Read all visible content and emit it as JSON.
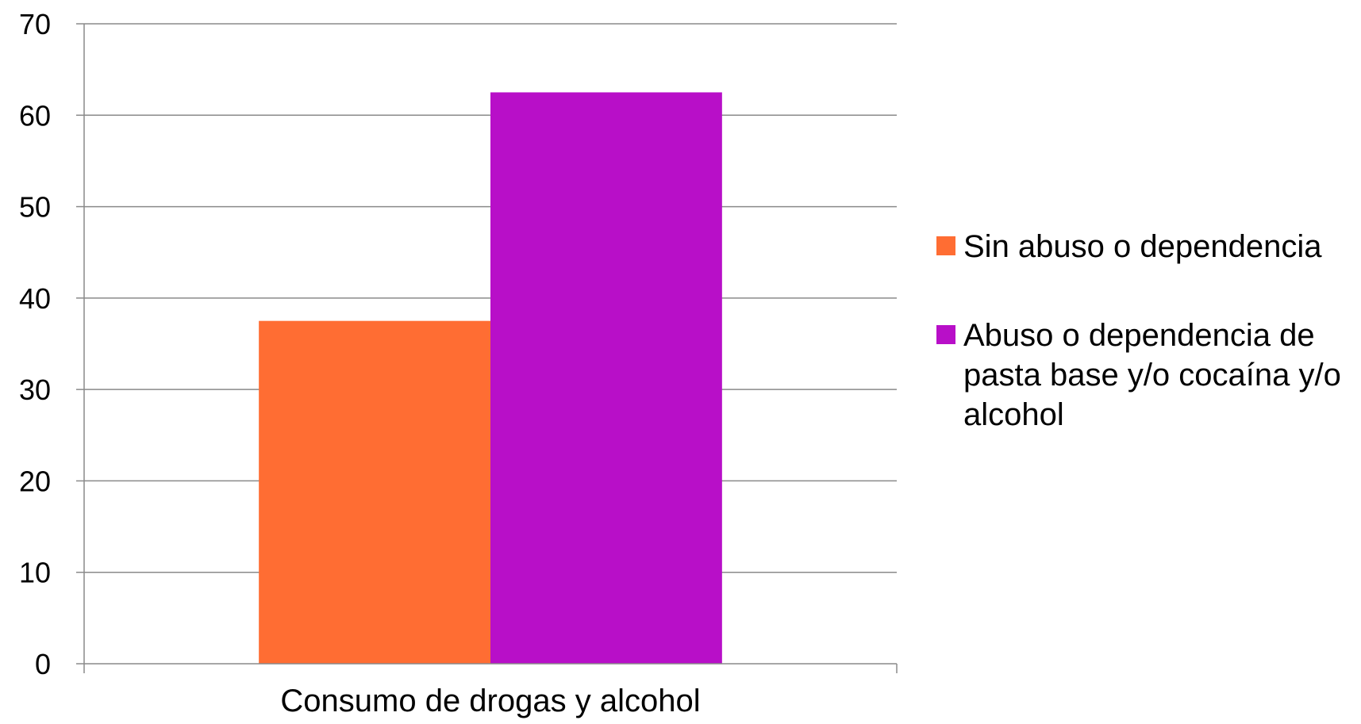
{
  "chart_data": {
    "type": "bar",
    "categories": [
      "Consumo de drogas y alcohol"
    ],
    "series": [
      {
        "name": "Sin abuso o dependencia",
        "values": [
          37.5
        ],
        "color": "#FF6D33"
      },
      {
        "name": "Abuso o dependencia de pasta base y/o cocaína y/o alcohol",
        "values": [
          62.5
        ],
        "color": "#B80FC8"
      }
    ],
    "ylim": [
      0,
      70
    ],
    "yticks": [
      "0",
      "10",
      "20",
      "30",
      "40",
      "50",
      "60",
      "70"
    ],
    "grid": true,
    "legend_position": "right"
  }
}
